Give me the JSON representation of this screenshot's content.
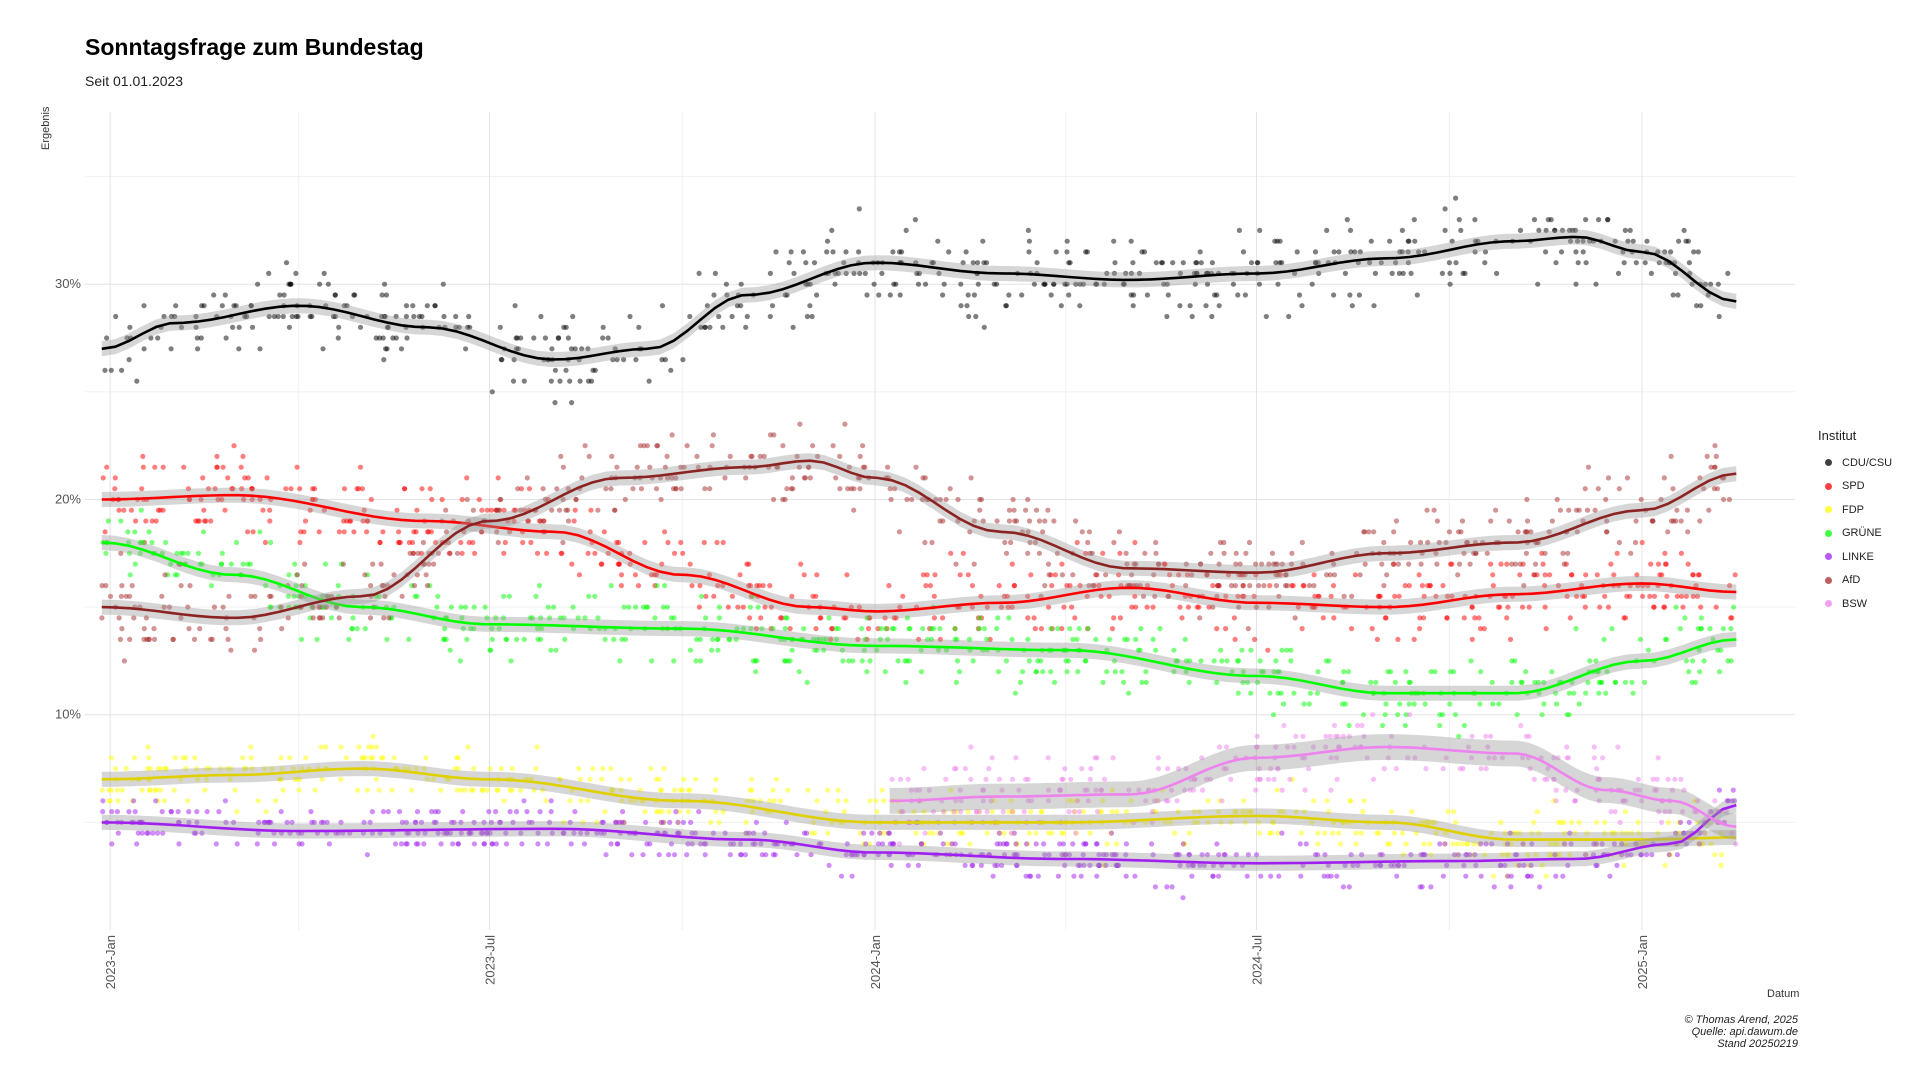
{
  "chart_data": {
    "type": "scatter",
    "title": "Sonntagsfrage zum Bundestag",
    "subtitle": "Seit 01.01.2023",
    "ylabel": "Ergebnis",
    "xlabel": "Datum",
    "x_range": [
      "2022-12-20",
      "2025-03-15"
    ],
    "ylim": [
      0,
      38
    ],
    "y_ticks": [
      10,
      20,
      30
    ],
    "y_tick_labels": [
      "10%",
      "20%",
      "30%"
    ],
    "x_ticks": [
      "2023-01-01",
      "2023-07-01",
      "2024-01-01",
      "2024-07-01",
      "2025-01-01"
    ],
    "x_tick_labels": [
      "2023-Jan",
      "2023-Jul",
      "2024-Jan",
      "2024-Jul",
      "2025-Jan"
    ],
    "grid": true,
    "legend_title": "Institut",
    "legend_position": "right",
    "series": [
      {
        "name": "CDU/CSU",
        "color": "#000000",
        "trend": [
          [
            "2022-12-28",
            27.0
          ],
          [
            "2023-02-01",
            28.2
          ],
          [
            "2023-04-01",
            29.0
          ],
          [
            "2023-06-01",
            28.0
          ],
          [
            "2023-08-01",
            26.5
          ],
          [
            "2023-09-15",
            27.0
          ],
          [
            "2023-11-01",
            29.5
          ],
          [
            "2024-01-01",
            31.0
          ],
          [
            "2024-03-01",
            30.5
          ],
          [
            "2024-05-01",
            30.2
          ],
          [
            "2024-07-01",
            30.5
          ],
          [
            "2024-09-01",
            31.2
          ],
          [
            "2024-11-01",
            32.0
          ],
          [
            "2024-12-01",
            32.2
          ],
          [
            "2025-01-01",
            31.5
          ],
          [
            "2025-02-15",
            29.2
          ]
        ],
        "trend_start": "2022-12-28",
        "spread": 1.3
      },
      {
        "name": "SPD",
        "color": "#ff0000",
        "trend": [
          [
            "2022-12-28",
            20.0
          ],
          [
            "2023-03-01",
            20.2
          ],
          [
            "2023-06-01",
            19.0
          ],
          [
            "2023-08-01",
            18.5
          ],
          [
            "2023-10-01",
            16.5
          ],
          [
            "2023-12-01",
            15.0
          ],
          [
            "2024-01-01",
            14.8
          ],
          [
            "2024-03-01",
            15.2
          ],
          [
            "2024-05-01",
            15.9
          ],
          [
            "2024-07-01",
            15.2
          ],
          [
            "2024-09-01",
            15.0
          ],
          [
            "2024-11-01",
            15.6
          ],
          [
            "2025-01-01",
            16.1
          ],
          [
            "2025-02-15",
            15.7
          ]
        ],
        "trend_start": "2022-12-28",
        "spread": 1.4
      },
      {
        "name": "FDP",
        "color": "#ffff00",
        "trend": [
          [
            "2022-12-28",
            7.0
          ],
          [
            "2023-03-01",
            7.2
          ],
          [
            "2023-05-01",
            7.5
          ],
          [
            "2023-07-01",
            7.0
          ],
          [
            "2023-10-01",
            6.0
          ],
          [
            "2024-01-01",
            5.0
          ],
          [
            "2024-04-01",
            5.0
          ],
          [
            "2024-07-01",
            5.3
          ],
          [
            "2024-09-01",
            5.0
          ],
          [
            "2024-11-01",
            4.2
          ],
          [
            "2025-01-01",
            4.2
          ],
          [
            "2025-02-15",
            4.3
          ]
        ],
        "trend_start": "2022-12-28",
        "spread": 1.0
      },
      {
        "name": "GRÜNE",
        "color": "#00ff00",
        "trend": [
          [
            "2022-12-28",
            18.0
          ],
          [
            "2023-03-01",
            16.5
          ],
          [
            "2023-05-01",
            15.0
          ],
          [
            "2023-07-01",
            14.2
          ],
          [
            "2023-10-01",
            14.0
          ],
          [
            "2024-01-01",
            13.2
          ],
          [
            "2024-04-01",
            13.0
          ],
          [
            "2024-07-01",
            11.8
          ],
          [
            "2024-09-01",
            11.0
          ],
          [
            "2024-11-01",
            11.0
          ],
          [
            "2025-01-01",
            12.5
          ],
          [
            "2025-02-15",
            13.5
          ]
        ],
        "trend_start": "2022-12-28",
        "spread": 1.2
      },
      {
        "name": "LINKE",
        "color": "#a020f0",
        "trend": [
          [
            "2022-12-28",
            5.0
          ],
          [
            "2023-04-01",
            4.6
          ],
          [
            "2023-08-01",
            4.7
          ],
          [
            "2023-11-01",
            4.2
          ],
          [
            "2024-01-01",
            3.6
          ],
          [
            "2024-04-01",
            3.3
          ],
          [
            "2024-07-01",
            3.1
          ],
          [
            "2024-10-01",
            3.2
          ],
          [
            "2024-12-01",
            3.3
          ],
          [
            "2025-01-15",
            4.0
          ],
          [
            "2025-02-15",
            5.8
          ]
        ],
        "trend_start": "2022-12-28",
        "spread": 0.8
      },
      {
        "name": "AfD",
        "color": "#a52a2a",
        "trend": [
          [
            "2022-12-28",
            15.0
          ],
          [
            "2023-03-01",
            14.5
          ],
          [
            "2023-05-01",
            15.5
          ],
          [
            "2023-07-01",
            19.0
          ],
          [
            "2023-09-01",
            21.0
          ],
          [
            "2023-11-01",
            21.5
          ],
          [
            "2023-12-01",
            21.8
          ],
          [
            "2024-01-01",
            21.0
          ],
          [
            "2024-03-01",
            18.5
          ],
          [
            "2024-05-01",
            16.8
          ],
          [
            "2024-07-01",
            16.6
          ],
          [
            "2024-09-01",
            17.5
          ],
          [
            "2024-11-01",
            18.0
          ],
          [
            "2025-01-01",
            19.5
          ],
          [
            "2025-02-15",
            21.2
          ]
        ],
        "trend_start": "2022-12-28",
        "spread": 1.3
      },
      {
        "name": "BSW",
        "color": "#ee82ee",
        "trend": [
          [
            "2024-01-08",
            6.0
          ],
          [
            "2024-03-01",
            6.2
          ],
          [
            "2024-05-01",
            6.3
          ],
          [
            "2024-07-01",
            8.0
          ],
          [
            "2024-09-01",
            8.5
          ],
          [
            "2024-11-01",
            8.2
          ],
          [
            "2024-12-15",
            6.5
          ],
          [
            "2025-01-15",
            6.0
          ],
          [
            "2025-02-15",
            4.8
          ]
        ],
        "trend_start": "2024-01-08",
        "spread": 1.2
      }
    ]
  },
  "caption": {
    "line1": "© Thomas Arend, 2025",
    "line2": "Quelle: api.dawum.de",
    "line3": "Stand 20250219"
  }
}
